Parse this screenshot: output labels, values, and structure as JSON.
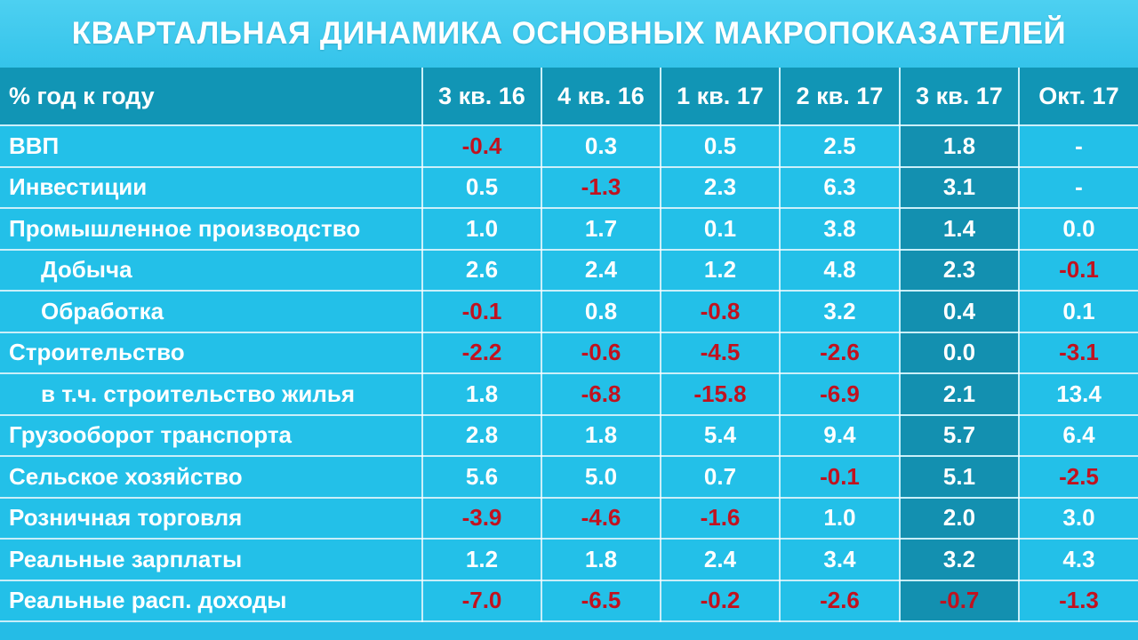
{
  "title": "КВАРТАЛЬНАЯ ДИНАМИКА ОСНОВНЫХ МАКРОПОКАЗАТЕЛЕЙ",
  "colors": {
    "background": "#25bce6",
    "header_bg": "#1195b5",
    "highlight_column_bg": "#1390b0",
    "text": "#ffffff",
    "negative_text": "#c1121f"
  },
  "chart_data": {
    "type": "table",
    "title": "КВАРТАЛЬНАЯ ДИНАМИКА ОСНОВНЫХ МАКРОПОКАЗАТЕЛЕЙ",
    "row_header": "% год к году",
    "columns": [
      "3 кв. 16",
      "4 кв. 16",
      "1 кв. 17",
      "2 кв. 17",
      "3 кв. 17",
      "Окт. 17"
    ],
    "highlighted_column": "3 кв. 17",
    "rows": [
      {
        "label": "ВВП",
        "indent": false,
        "values": [
          "-0.4",
          "0.3",
          "0.5",
          "2.5",
          "1.8",
          "-"
        ]
      },
      {
        "label": "Инвестиции",
        "indent": false,
        "values": [
          "0.5",
          "-1.3",
          "2.3",
          "6.3",
          "3.1",
          "-"
        ]
      },
      {
        "label": "Промышленное производство",
        "indent": false,
        "values": [
          "1.0",
          "1.7",
          "0.1",
          "3.8",
          "1.4",
          "0.0"
        ]
      },
      {
        "label": "Добыча",
        "indent": true,
        "values": [
          "2.6",
          "2.4",
          "1.2",
          "4.8",
          "2.3",
          "-0.1"
        ]
      },
      {
        "label": "Обработка",
        "indent": true,
        "values": [
          "-0.1",
          "0.8",
          "-0.8",
          "3.2",
          "0.4",
          "0.1"
        ]
      },
      {
        "label": "Строительство",
        "indent": false,
        "values": [
          "-2.2",
          "-0.6",
          "-4.5",
          "-2.6",
          "0.0",
          "-3.1"
        ]
      },
      {
        "label": "в т.ч. строительство жилья",
        "indent": true,
        "values": [
          "1.8",
          "-6.8",
          "-15.8",
          "-6.9",
          "2.1",
          "13.4"
        ]
      },
      {
        "label": "Грузооборот транспорта",
        "indent": false,
        "values": [
          "2.8",
          "1.8",
          "5.4",
          "9.4",
          "5.7",
          "6.4"
        ]
      },
      {
        "label": "Сельское хозяйство",
        "indent": false,
        "values": [
          "5.6",
          "5.0",
          "0.7",
          "-0.1",
          "5.1",
          "-2.5"
        ]
      },
      {
        "label": "Розничная торговля",
        "indent": false,
        "values": [
          "-3.9",
          "-4.6",
          "-1.6",
          "1.0",
          "2.0",
          "3.0"
        ]
      },
      {
        "label": "Реальные зарплаты",
        "indent": false,
        "values": [
          "1.2",
          "1.8",
          "2.4",
          "3.4",
          "3.2",
          "4.3"
        ]
      },
      {
        "label": "Реальные расп. доходы",
        "indent": false,
        "values": [
          "-7.0",
          "-6.5",
          "-0.2",
          "-2.6",
          "-0.7",
          "-1.3"
        ]
      }
    ]
  }
}
